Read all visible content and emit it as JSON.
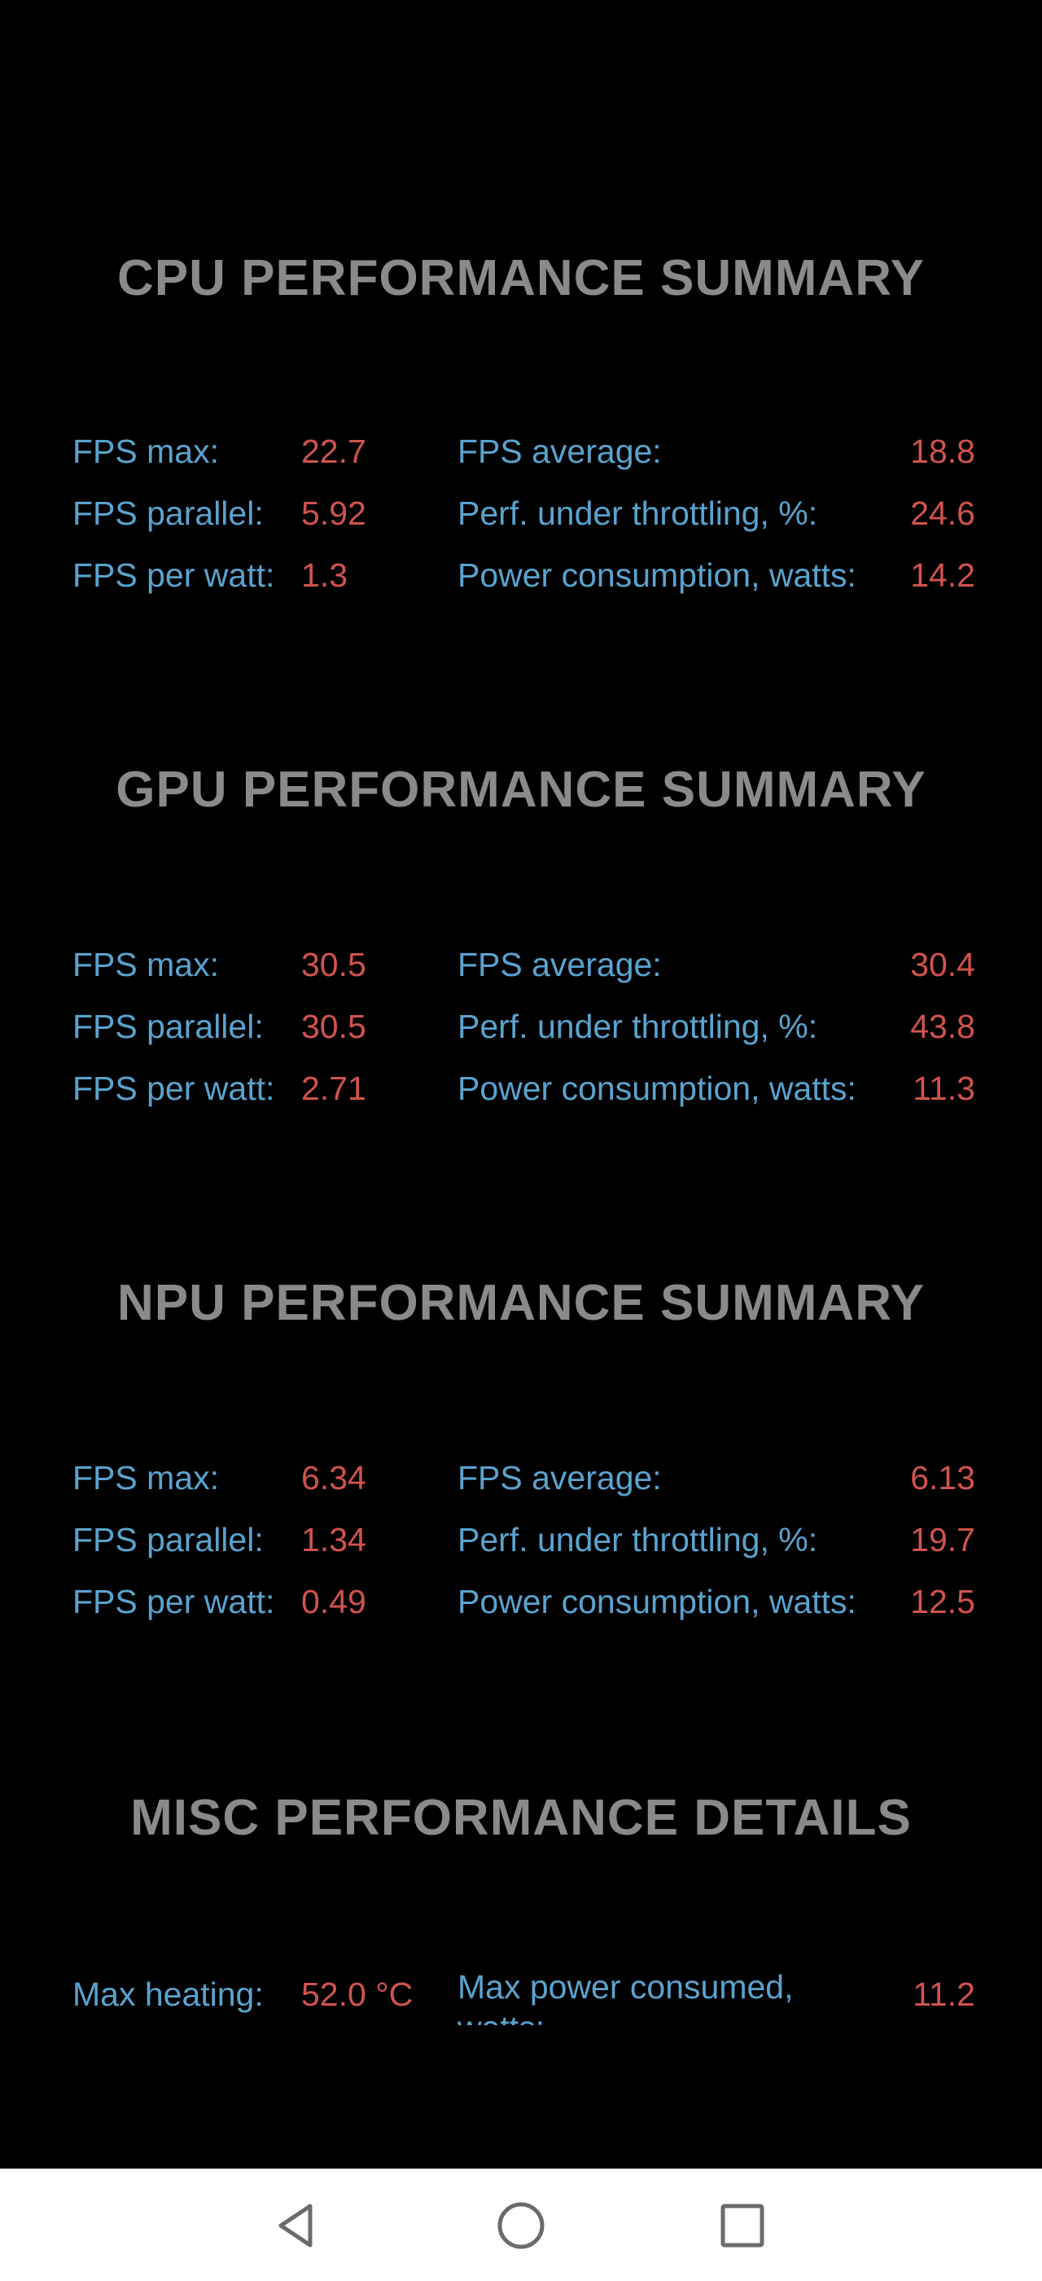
{
  "sections": [
    {
      "title": "CPU PERFORMANCE SUMMARY",
      "rows": [
        {
          "left_label": "FPS max:",
          "left_value": "22.7",
          "right_label": "FPS average:",
          "right_value": "18.8"
        },
        {
          "left_label": "FPS parallel:",
          "left_value": "5.92",
          "right_label": "Perf. under throttling, %:",
          "right_value": "24.6"
        },
        {
          "left_label": "FPS per watt:",
          "left_value": "1.3",
          "right_label": "Power consumption, watts:",
          "right_value": "14.2"
        }
      ]
    },
    {
      "title": "GPU PERFORMANCE SUMMARY",
      "rows": [
        {
          "left_label": "FPS max:",
          "left_value": "30.5",
          "right_label": "FPS average:",
          "right_value": "30.4"
        },
        {
          "left_label": "FPS parallel:",
          "left_value": "30.5",
          "right_label": "Perf. under throttling, %:",
          "right_value": "43.8"
        },
        {
          "left_label": "FPS per watt:",
          "left_value": "2.71",
          "right_label": "Power consumption, watts:",
          "right_value": "11.3"
        }
      ]
    },
    {
      "title": "NPU PERFORMANCE SUMMARY",
      "rows": [
        {
          "left_label": "FPS max:",
          "left_value": "6.34",
          "right_label": "FPS average:",
          "right_value": "6.13"
        },
        {
          "left_label": "FPS parallel:",
          "left_value": "1.34",
          "right_label": "Perf. under throttling, %:",
          "right_value": "19.7"
        },
        {
          "left_label": "FPS per watt:",
          "left_value": "0.49",
          "right_label": "Power consumption, watts:",
          "right_value": "12.5"
        }
      ]
    }
  ],
  "misc": {
    "title": "MISC PERFORMANCE DETAILS",
    "left_label": "Max heating:",
    "left_value": "52.0 °C",
    "right_label": "Max power consumed, watts:",
    "right_value": "11.2"
  },
  "navbar": {
    "back_icon": "back-triangle-icon",
    "home_icon": "home-circle-icon",
    "recents_icon": "recents-square-icon"
  },
  "colors": {
    "background": "#000000",
    "title": "#8a8a8a",
    "label": "#5aa3cf",
    "value": "#d0534f",
    "navbar": "#ffffff",
    "nav_icon": "#6b6b6b"
  }
}
